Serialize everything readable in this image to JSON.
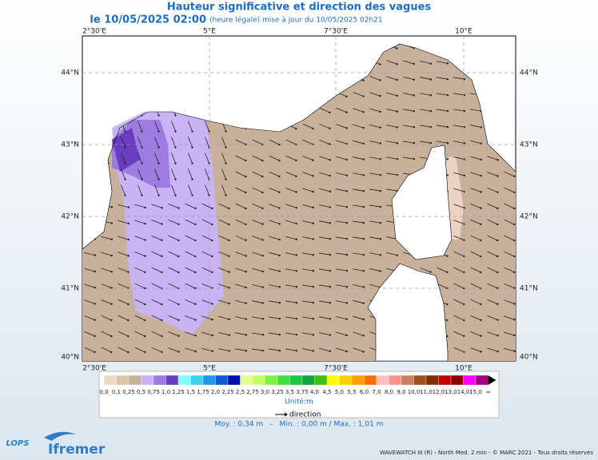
{
  "header": {
    "title": "Hauteur significative et direction des vagues",
    "date": "le 10/05/2025 02:00",
    "note": "(heure légale) mise à jour du 10/05/2025 02h21"
  },
  "axes": {
    "lon": [
      "2°30'E",
      "5°E",
      "7°30'E",
      "10°E"
    ],
    "lat": [
      "44°N",
      "43°N",
      "42°N",
      "41°N",
      "40°N"
    ]
  },
  "legend": {
    "labels": [
      "0,0",
      "0,1",
      "0,25",
      "0,5",
      "0,75",
      "1,0",
      "1,25",
      "1,5",
      "1,75",
      "2,0",
      "2,25",
      "2,5",
      "2,75",
      "3,0",
      "3,25",
      "3,5",
      "3,75",
      "4,0",
      "4,5",
      "5,0",
      "5,5",
      "6,0",
      "7,0",
      "8,0",
      "9,0",
      "10,0",
      "11,0",
      "12,0",
      "13,0",
      "14,0",
      "15,0",
      "∞"
    ],
    "colors": [
      "#ecd9c6",
      "#dcc3ac",
      "#c9b09a",
      "#c8b4f4",
      "#9c7ce0",
      "#6a3cc0",
      "#80ffff",
      "#40d0f4",
      "#2098e8",
      "#1058d8",
      "#0010a8",
      "#e4ff90",
      "#c4ff60",
      "#80f040",
      "#40e040",
      "#20c840",
      "#10a840",
      "#40c010",
      "#ffff00",
      "#ffd000",
      "#ffa000",
      "#ff7000",
      "#ffc0c0",
      "#ff9090",
      "#c88060",
      "#a05020",
      "#803000",
      "#c00000",
      "#900000",
      "#ff00ff",
      "#a00080"
    ],
    "unit": "Unité:m",
    "direction": "direction"
  },
  "stats": "Moy. : 0,34 m   -   Min. : 0,00 m / Max. : 1,01 m",
  "footer": "WAVEWATCH III (R) - North Med. 2 min - © MARC 2021 - Tous droits réservés",
  "logos": {
    "lops": "LOPS",
    "ifremer": "Ifremer"
  }
}
